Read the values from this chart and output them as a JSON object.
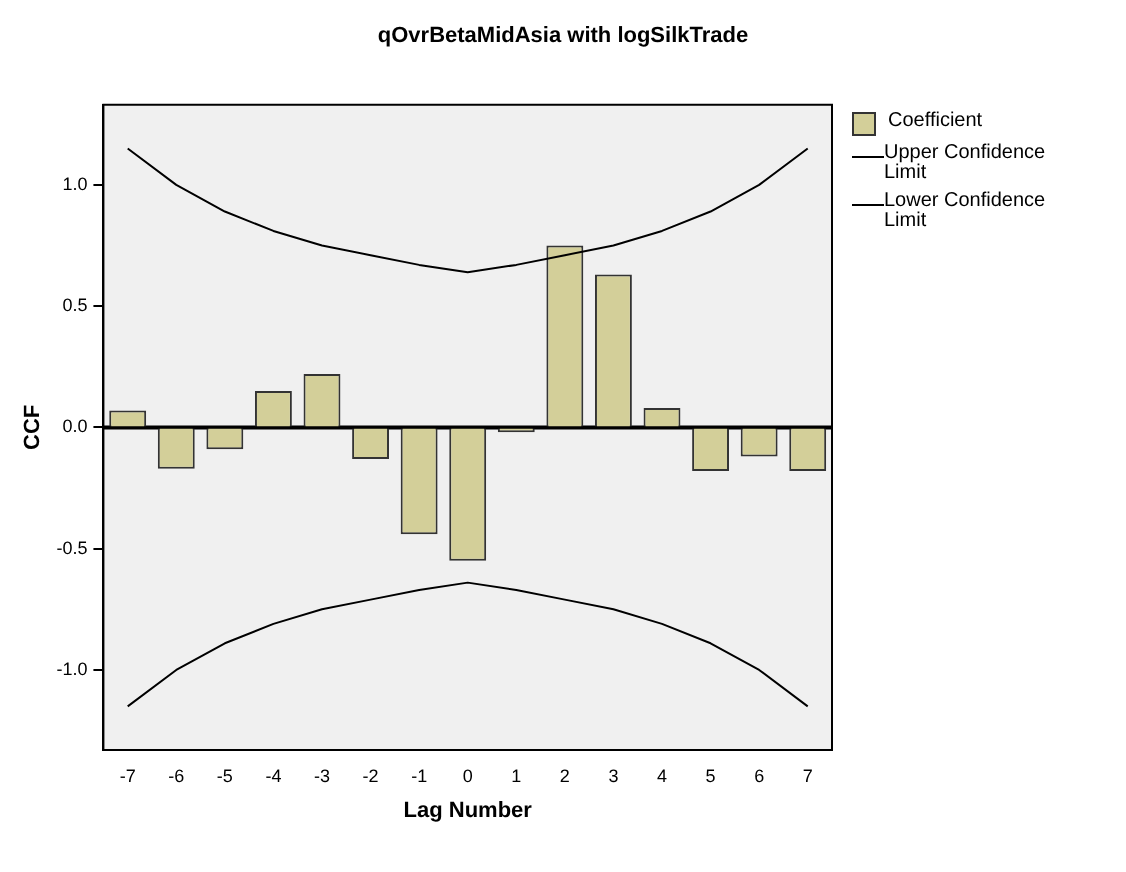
{
  "chart_data": {
    "type": "bar",
    "title": "qOvrBetaMidAsia with logSilkTrade",
    "xlabel": "Lag Number",
    "ylabel": "CCF",
    "categories": [
      "-7",
      "-6",
      "-5",
      "-4",
      "-3",
      "-2",
      "-1",
      "0",
      "1",
      "2",
      "3",
      "4",
      "5",
      "6",
      "7"
    ],
    "series": [
      {
        "name": "Coefficient",
        "color": "#d3cf99",
        "values": [
          0.07,
          -0.17,
          -0.09,
          0.15,
          0.22,
          -0.13,
          -0.44,
          -0.55,
          -0.02,
          0.75,
          0.63,
          0.08,
          -0.18,
          -0.12,
          -0.18
        ]
      },
      {
        "name": "Upper Confidence Limit",
        "type": "line",
        "color": "#000000",
        "values": [
          1.15,
          1.0,
          0.89,
          0.81,
          0.75,
          0.71,
          0.67,
          0.64,
          0.67,
          0.71,
          0.75,
          0.81,
          0.89,
          1.0,
          1.15
        ]
      },
      {
        "name": "Lower Confidence Limit",
        "type": "line",
        "color": "#000000",
        "values": [
          -1.15,
          -1.0,
          -0.89,
          -0.81,
          -0.75,
          -0.71,
          -0.67,
          -0.64,
          -0.67,
          -0.71,
          -0.75,
          -0.81,
          -0.89,
          -1.0,
          -1.15
        ]
      }
    ],
    "ylim": [
      -1.33,
      1.33
    ],
    "yticks": [
      {
        "value": -1,
        "label": "-1.0"
      },
      {
        "value": -0.5,
        "label": "-0.5"
      },
      {
        "value": 0,
        "label": "0.0"
      },
      {
        "value": 0.5,
        "label": "0.5"
      },
      {
        "value": 1,
        "label": "1.0"
      }
    ],
    "ref_lines": [
      {
        "axis": "y",
        "value": 0,
        "color": "#000000"
      }
    ],
    "grid": false,
    "legend": "top right",
    "marker": "none",
    "line_style": "solid"
  }
}
